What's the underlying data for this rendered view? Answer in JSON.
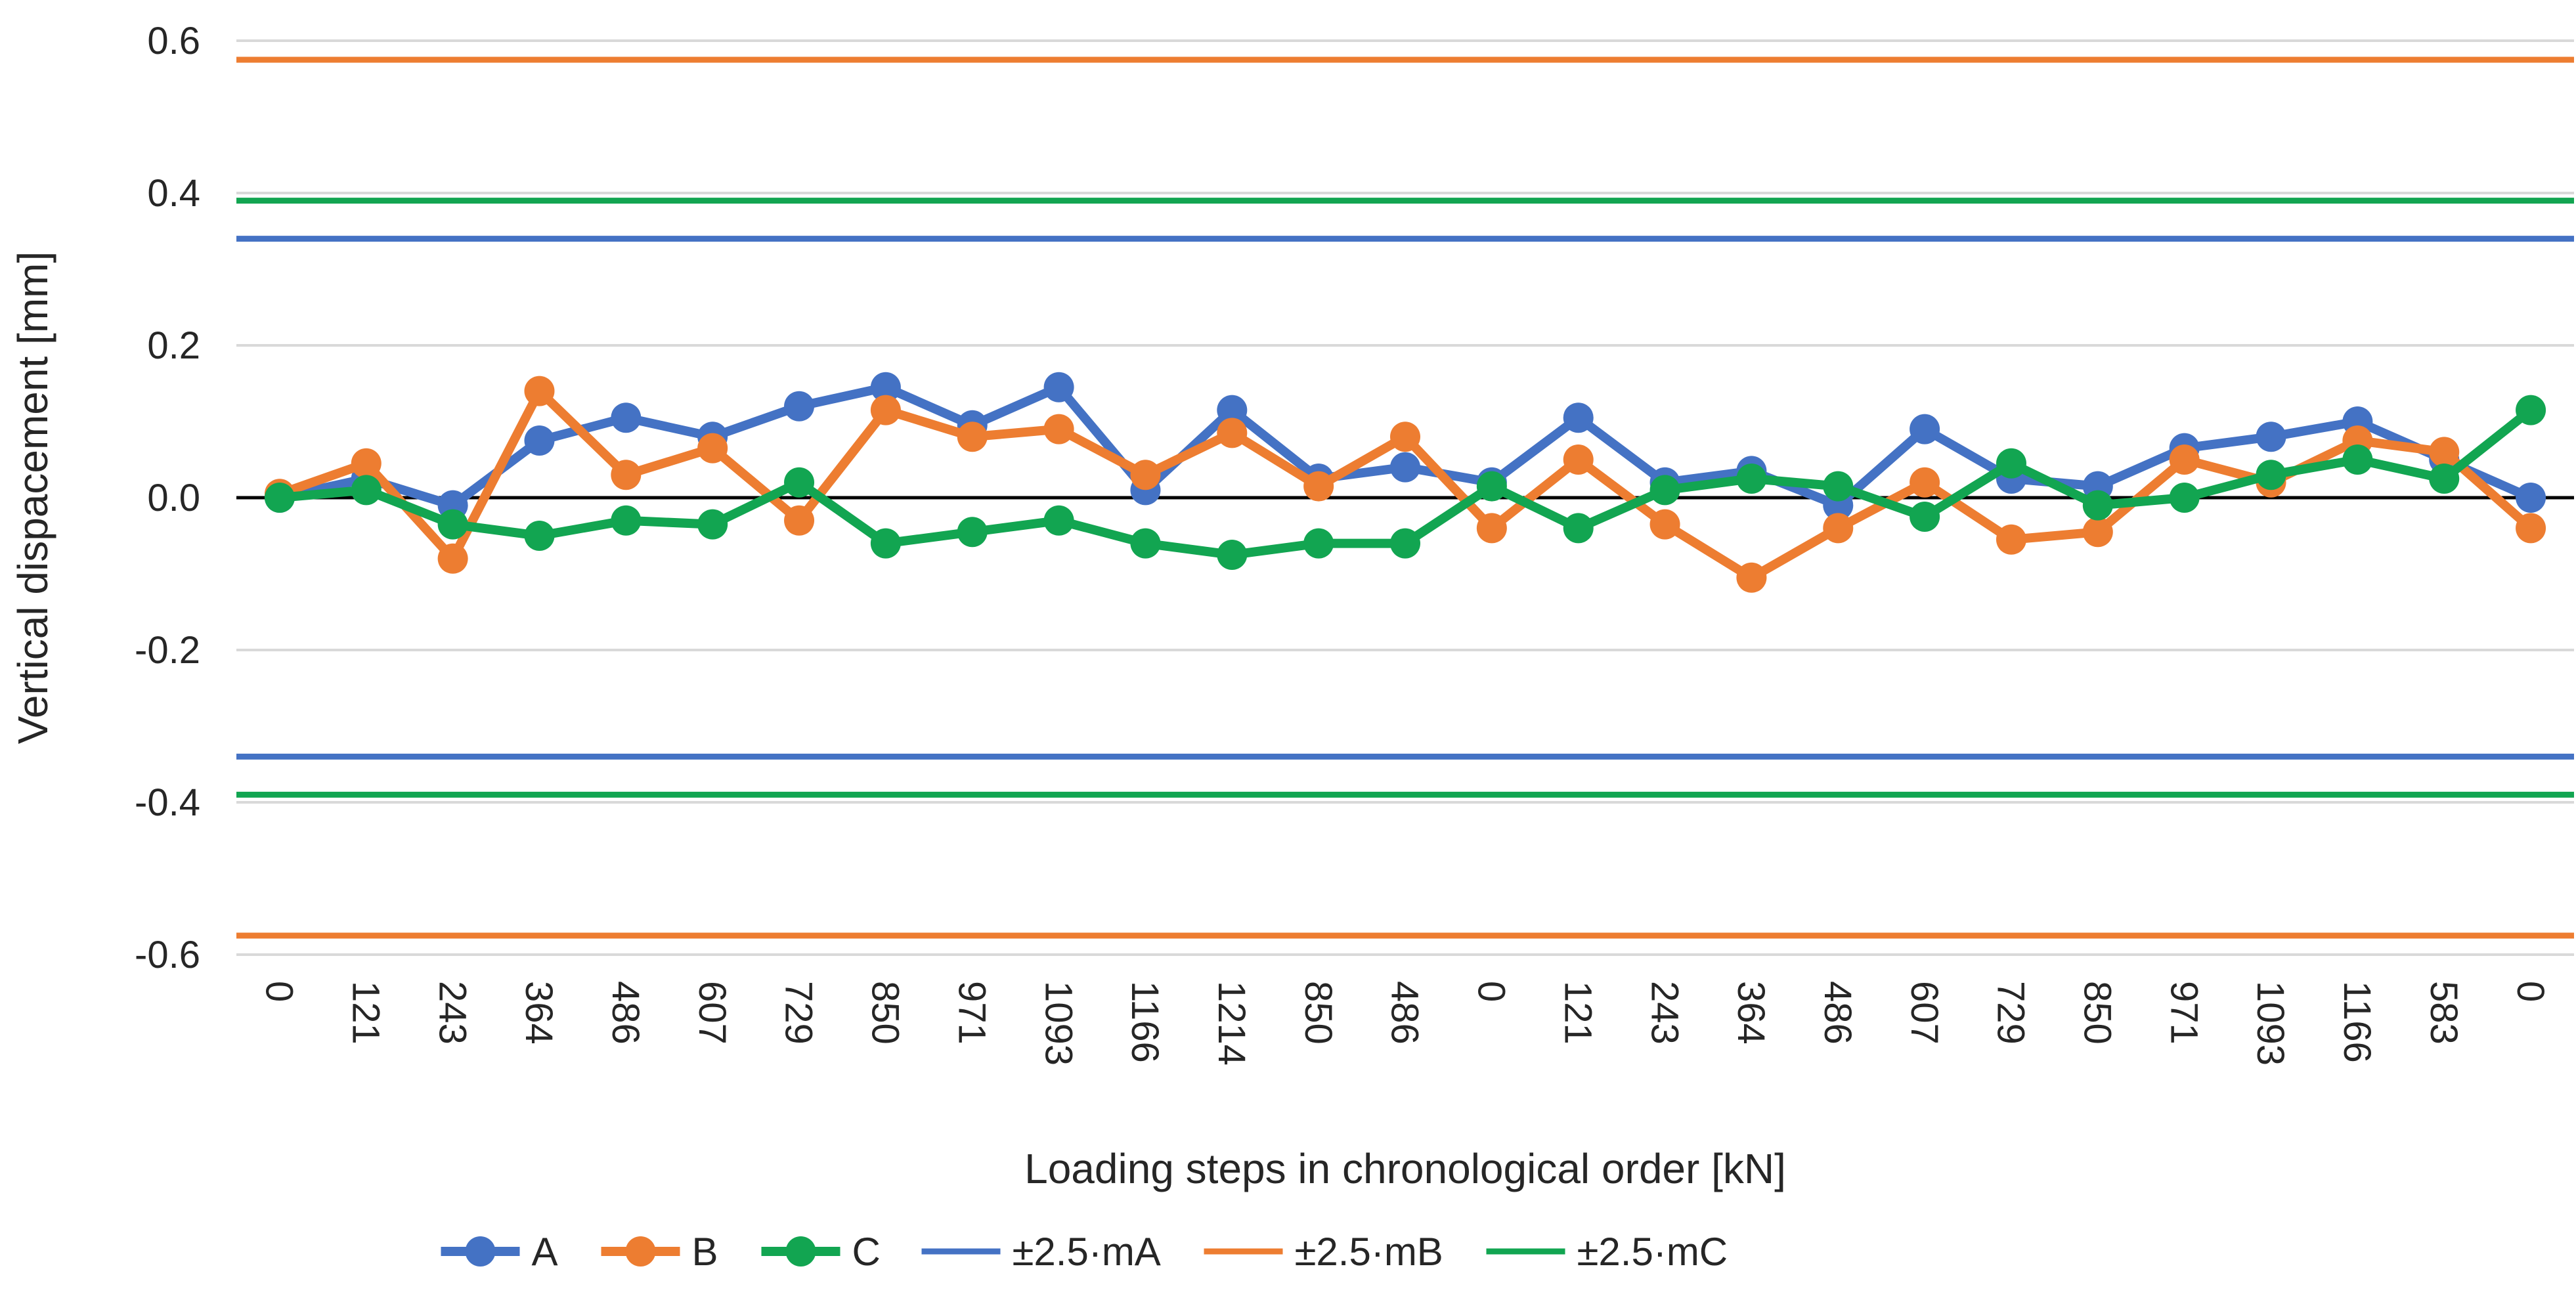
{
  "colors": {
    "background": "#FFFFFF",
    "gridline": "#D9D9D9",
    "zero_axis": "#000000",
    "tick_text": "#262626",
    "title_text": "#262626",
    "series_a": "#4472C4",
    "series_b": "#ED7D31",
    "series_c": "#12A551"
  },
  "chart_data": {
    "type": "line",
    "title": "",
    "xlabel": "Loading steps in chronological order [kN]",
    "ylabel": "Vertical dispacement [mm]",
    "grid": true,
    "legend_position": "bottom",
    "ylim": [
      -0.65,
      0.65
    ],
    "y_ticks": [
      {
        "value": 0.6,
        "label": "0.6"
      },
      {
        "value": 0.4,
        "label": "0.4"
      },
      {
        "value": 0.2,
        "label": "0.2"
      },
      {
        "value": 0.0,
        "label": "0.0"
      },
      {
        "value": -0.2,
        "label": "-0.2"
      },
      {
        "value": -0.4,
        "label": "-0.4"
      },
      {
        "value": -0.6,
        "label": "-0.6"
      }
    ],
    "categories": [
      "0",
      "121",
      "243",
      "364",
      "486",
      "607",
      "729",
      "850",
      "971",
      "1093",
      "1166",
      "1214",
      "850",
      "486",
      "0",
      "121",
      "243",
      "364",
      "486",
      "607",
      "729",
      "850",
      "971",
      "1093",
      "1166",
      "583",
      "0"
    ],
    "series": [
      {
        "name": "A",
        "color": "#4472C4",
        "values": [
          0.0,
          0.025,
          -0.01,
          0.075,
          0.105,
          0.08,
          0.12,
          0.145,
          0.095,
          0.145,
          0.01,
          0.115,
          0.025,
          0.04,
          0.02,
          0.105,
          0.02,
          0.035,
          -0.01,
          0.09,
          0.025,
          0.015,
          0.065,
          0.08,
          0.1,
          0.05,
          0.0
        ]
      },
      {
        "name": "B",
        "color": "#ED7D31",
        "values": [
          0.005,
          0.045,
          -0.08,
          0.14,
          0.03,
          0.065,
          -0.03,
          0.115,
          0.08,
          0.09,
          0.03,
          0.085,
          0.015,
          0.08,
          -0.04,
          0.05,
          -0.035,
          -0.105,
          -0.04,
          0.02,
          -0.055,
          -0.045,
          0.05,
          0.02,
          0.075,
          0.06,
          -0.04
        ]
      },
      {
        "name": "C",
        "color": "#12A551",
        "values": [
          0.0,
          0.01,
          -0.035,
          -0.05,
          -0.03,
          -0.035,
          0.02,
          -0.06,
          -0.045,
          -0.03,
          -0.06,
          -0.075,
          -0.06,
          -0.06,
          0.015,
          -0.04,
          0.01,
          0.025,
          0.015,
          -0.025,
          0.045,
          -0.01,
          0.0,
          0.03,
          0.05,
          0.025,
          0.115
        ]
      }
    ],
    "reference_lines": [
      {
        "id": "ma",
        "name": "±2.5·mA",
        "color": "#4472C4",
        "value": 0.34
      },
      {
        "id": "mb",
        "name": "±2.5·mB",
        "color": "#ED7D31",
        "value": 0.575
      },
      {
        "id": "mc",
        "name": "±2.5·mC",
        "color": "#12A551",
        "value": 0.39
      }
    ],
    "legend_entries": [
      "A",
      "B",
      "C",
      "±2.5·mA",
      "±2.5·mB",
      "±2.5·mC"
    ]
  }
}
